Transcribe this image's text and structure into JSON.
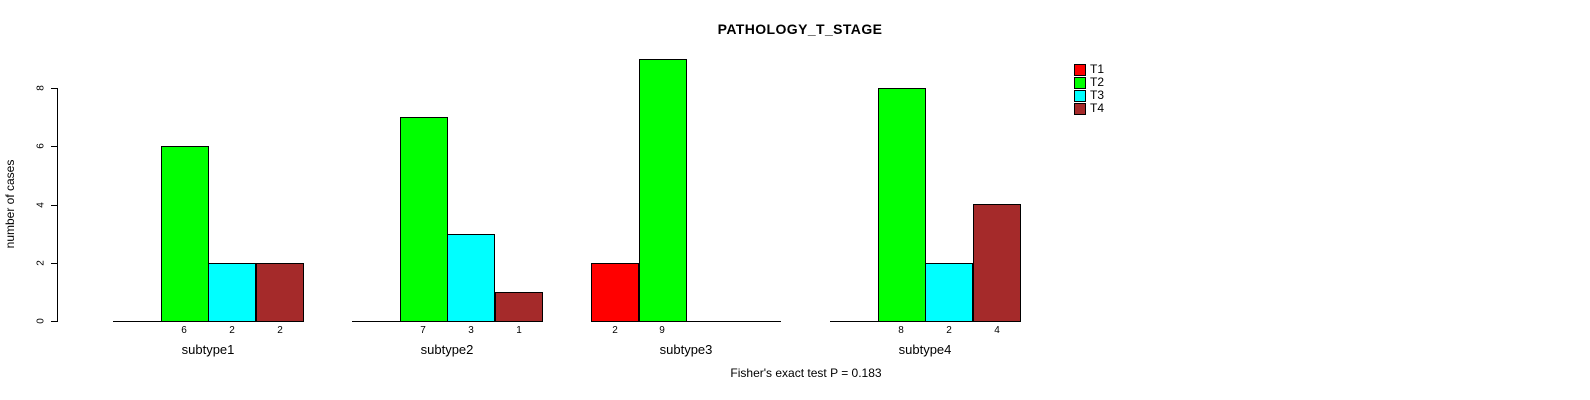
{
  "chart_data": {
    "type": "bar",
    "title": "PATHOLOGY_T_STAGE",
    "ylabel": "number of cases",
    "xlabel": "",
    "categories": [
      "subtype1",
      "subtype2",
      "subtype3",
      "subtype4"
    ],
    "series": [
      {
        "name": "T1",
        "color": "#FF0000",
        "values": [
          0,
          0,
          2,
          0
        ]
      },
      {
        "name": "T2",
        "color": "#00FF00",
        "values": [
          6,
          7,
          9,
          8
        ]
      },
      {
        "name": "T3",
        "color": "#00FFFF",
        "values": [
          2,
          3,
          0,
          2
        ]
      },
      {
        "name": "T4",
        "color": "#A52A2A",
        "values": [
          2,
          1,
          0,
          4
        ]
      }
    ],
    "yticks": [
      0,
      2,
      4,
      6,
      8
    ],
    "ylim": [
      0,
      9
    ],
    "grid": false,
    "bar_value_labels_shown": true,
    "zero_bars_hidden": true,
    "legend_position": "top-right",
    "legend_entries": [
      "T1",
      "T2",
      "T3",
      "T4"
    ],
    "annotation": "Fisher's exact test P = 0.183"
  },
  "colors": {
    "background": "#FFFFFF",
    "axis": "#000000",
    "text": "#000000",
    "t1": "#FF0000",
    "t2": "#00FF00",
    "t3": "#00FFFF",
    "t4": "#A52A2A"
  }
}
